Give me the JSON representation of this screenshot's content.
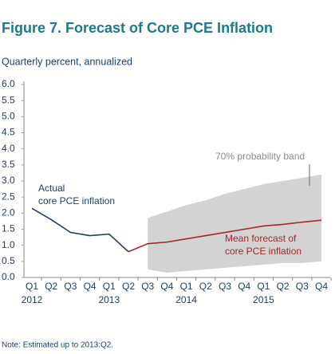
{
  "chart_data": {
    "type": "line",
    "title": "Figure 7. Forecast of Core PCE Inflation",
    "subtitle": "Quarterly percent, annualized",
    "note": "Note: Estimated up to 2013:Q2.",
    "categories": [
      "Q1",
      "Q2",
      "Q3",
      "Q4",
      "Q1",
      "Q2",
      "Q3",
      "Q4",
      "Q1",
      "Q2",
      "Q3",
      "Q4",
      "Q1",
      "Q2",
      "Q3",
      "Q4"
    ],
    "years": [
      "2012",
      null,
      null,
      null,
      "2013",
      null,
      null,
      null,
      "2014",
      null,
      null,
      null,
      "2015",
      null,
      null,
      null
    ],
    "series": [
      {
        "color": "#1f3d6b",
        "values": [
          2.15,
          1.8,
          1.4,
          1.3,
          1.35,
          0.8,
          null,
          null,
          null,
          null,
          null,
          null,
          null,
          null,
          null,
          null
        ]
      },
      {
        "color": "#a3282b",
        "values": [
          null,
          null,
          null,
          null,
          null,
          0.8,
          1.05,
          1.1,
          1.2,
          1.3,
          1.4,
          1.5,
          1.6,
          1.65,
          1.72,
          1.78
        ]
      }
    ],
    "band": {
      "color": "#d3d3d3",
      "upper": [
        null,
        null,
        null,
        null,
        null,
        null,
        1.85,
        2.05,
        2.25,
        2.4,
        2.6,
        2.75,
        2.9,
        3.0,
        3.1,
        3.2
      ],
      "lower": [
        null,
        null,
        null,
        null,
        null,
        null,
        0.25,
        0.15,
        0.2,
        0.25,
        0.3,
        0.35,
        0.4,
        0.45,
        0.45,
        0.5
      ]
    },
    "annotations": [
      {
        "lines": [
          "Actual",
          "core PCE inflation"
        ],
        "color": "#1f3d6b"
      },
      {
        "lines": [
          "Mean forecast of",
          "core PCE inflation"
        ],
        "color": "#a3282b"
      },
      {
        "lines": [
          "70% probability band"
        ],
        "color": "#8a8a8a"
      }
    ],
    "ylim": [
      0,
      6
    ],
    "yticks": [
      {
        "value": 0,
        "label": "0.0"
      },
      {
        "value": 0.5,
        "label": "0.5"
      },
      {
        "value": 1,
        "label": "1.0"
      },
      {
        "value": 1.5,
        "label": "1.5"
      },
      {
        "value": 2,
        "label": "2.0"
      },
      {
        "value": 2.5,
        "label": "2.5"
      },
      {
        "value": 3,
        "label": "3.0"
      },
      {
        "value": 3.5,
        "label": "3.5"
      },
      {
        "value": 4,
        "label": "4.0"
      },
      {
        "value": 4.5,
        "label": "4.5"
      },
      {
        "value": 5,
        "label": "5.0"
      },
      {
        "value": 5.5,
        "label": "5.5"
      },
      {
        "value": 6,
        "label": "6.0"
      }
    ]
  }
}
